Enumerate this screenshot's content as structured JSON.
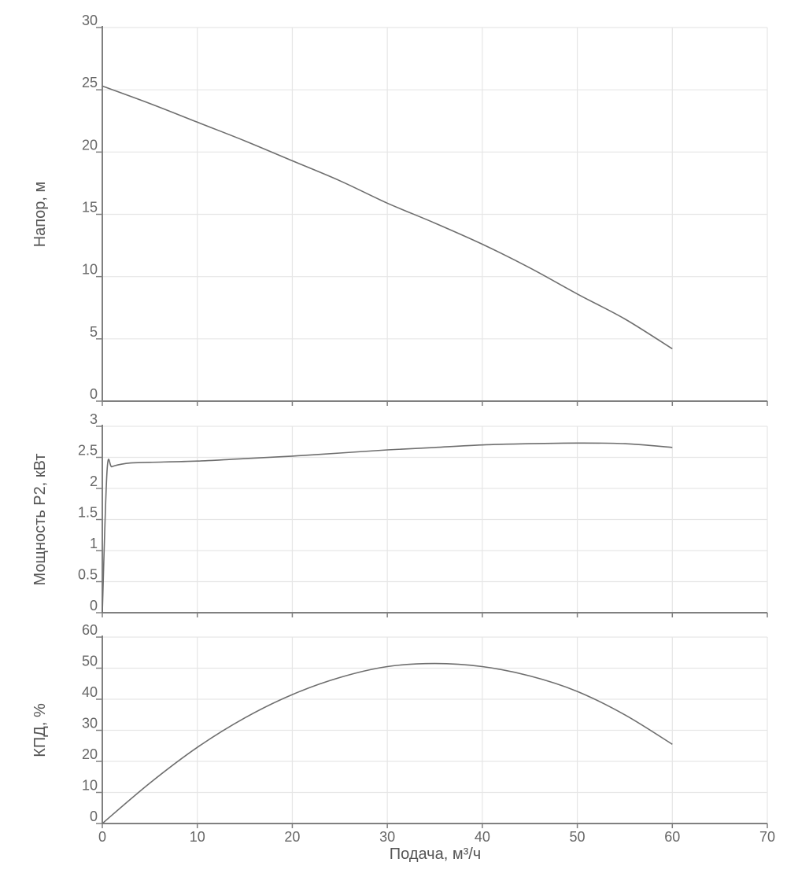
{
  "chart_data": [
    {
      "type": "line",
      "ylabel": "Напор, м",
      "ylim": [
        0,
        30
      ],
      "yticks": [
        0,
        5,
        10,
        15,
        20,
        25,
        30
      ],
      "xlim": [
        0,
        70
      ],
      "xticks": [
        0,
        10,
        20,
        30,
        40,
        50,
        60,
        70
      ],
      "grid": true,
      "series": [
        {
          "x": [
            0,
            5,
            10,
            15,
            20,
            25,
            30,
            35,
            40,
            45,
            50,
            55,
            60
          ],
          "y": [
            25.3,
            23.9,
            22.4,
            20.9,
            19.3,
            17.7,
            15.9,
            14.3,
            12.6,
            10.7,
            8.6,
            6.6,
            4.2
          ]
        }
      ]
    },
    {
      "type": "line",
      "ylabel": "Мощность P2, кВт",
      "ylim": [
        0,
        3
      ],
      "yticks": [
        0,
        0.5,
        1,
        1.5,
        2,
        2.5,
        3
      ],
      "xlim": [
        0,
        70
      ],
      "xticks": [
        0,
        10,
        20,
        30,
        40,
        50,
        60,
        70
      ],
      "grid": true,
      "series": [
        {
          "x": [
            0,
            0.5,
            1,
            2,
            3,
            5,
            10,
            15,
            20,
            25,
            30,
            35,
            40,
            45,
            50,
            55,
            60
          ],
          "y": [
            0,
            2.28,
            2.35,
            2.39,
            2.41,
            2.42,
            2.44,
            2.48,
            2.52,
            2.57,
            2.62,
            2.66,
            2.7,
            2.72,
            2.73,
            2.72,
            2.66
          ]
        }
      ]
    },
    {
      "type": "line",
      "ylabel": "КПД, %",
      "xlabel": "Подача, м³/ч",
      "ylim": [
        0,
        60
      ],
      "yticks": [
        0,
        10,
        20,
        30,
        40,
        50,
        60
      ],
      "xlim": [
        0,
        70
      ],
      "xticks": [
        0,
        10,
        20,
        30,
        40,
        50,
        60,
        70
      ],
      "grid": true,
      "series": [
        {
          "x": [
            0,
            5,
            10,
            15,
            20,
            25,
            30,
            35,
            40,
            45,
            50,
            55,
            60
          ],
          "y": [
            0,
            13,
            24.5,
            34,
            41.5,
            47,
            50.5,
            51.5,
            50.5,
            47.5,
            42.5,
            35,
            25.5
          ]
        }
      ]
    }
  ]
}
